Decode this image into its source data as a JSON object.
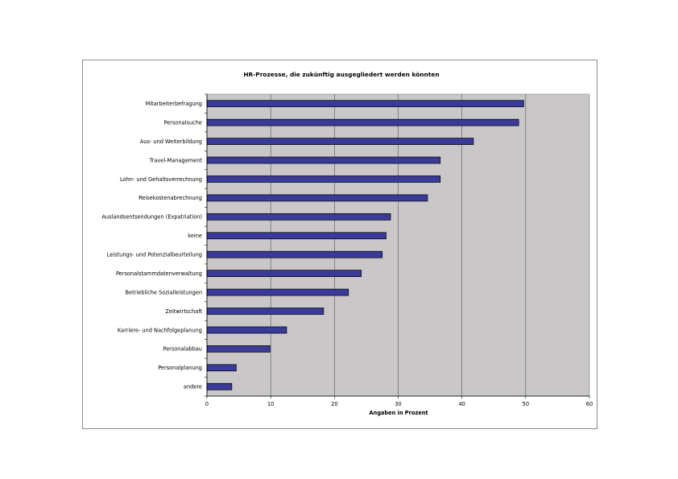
{
  "chart_data": {
    "type": "bar",
    "orientation": "horizontal",
    "title": "HR-Prozesse, die zukünftig ausgegliedert werden könnten",
    "xlabel": "Angaben in Prozent",
    "ylabel": "",
    "xlim": [
      0,
      60
    ],
    "x_ticks": [
      "0",
      "10",
      "20",
      "30",
      "40",
      "50",
      "60"
    ],
    "grid": true,
    "legend": "none",
    "categories": [
      "Mitarbeiterbefragung",
      "Personalsuche",
      "Aus- und  Weiterbildung",
      "Travel-Management",
      "Lohn- und Gehaltsverrechnung",
      "Reisekostenabrechnung",
      "Auslandsentsendungen (Expatriation)",
      "keine",
      "Leistungs- und Potenzialbeurteilung",
      "Personalstammdatenverwaltung",
      "Betriebliche Sozialleistungen",
      "Zeitwirtschaft",
      "Karriere- und Nachfolgeplanung",
      "Personalabbau",
      "Personalplanung",
      "andere"
    ],
    "values": [
      49.7,
      48.9,
      41.8,
      36.6,
      36.6,
      34.6,
      28.8,
      28.1,
      27.5,
      24.2,
      22.2,
      18.3,
      12.5,
      9.9,
      4.6,
      3.9
    ],
    "colors": {
      "bar": "#3a3a98",
      "bar_border": "#000000",
      "plot_background": "#c9c7c7",
      "gridline": "#555555"
    }
  }
}
